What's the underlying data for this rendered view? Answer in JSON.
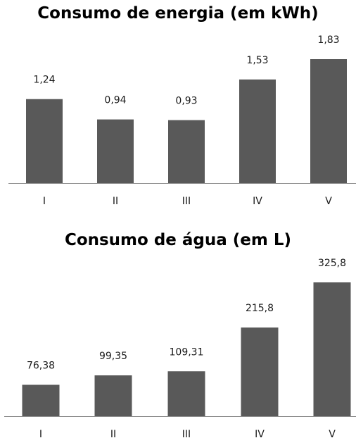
{
  "chart_data": [
    {
      "type": "bar",
      "title": "Consumo de energia (em kWh)",
      "categories": [
        "I",
        "II",
        "III",
        "IV",
        "V"
      ],
      "values": [
        1.24,
        0.94,
        0.93,
        1.53,
        1.83
      ],
      "value_labels": [
        "1,24",
        "0,94",
        "0,93",
        "1,53",
        "1,83"
      ],
      "ylim": [
        0,
        1.83
      ],
      "grid": false,
      "bar_color": "#595959"
    },
    {
      "type": "bar",
      "title": "Consumo de água (em L)",
      "categories": [
        "I",
        "II",
        "III",
        "IV",
        "V"
      ],
      "values": [
        76.38,
        99.35,
        109.31,
        215.8,
        325.8
      ],
      "value_labels": [
        "76,38",
        "99,35",
        "109,31",
        "215,8",
        "325,8"
      ],
      "ylim": [
        0,
        325.8
      ],
      "grid": false,
      "bar_color": "#595959"
    }
  ]
}
